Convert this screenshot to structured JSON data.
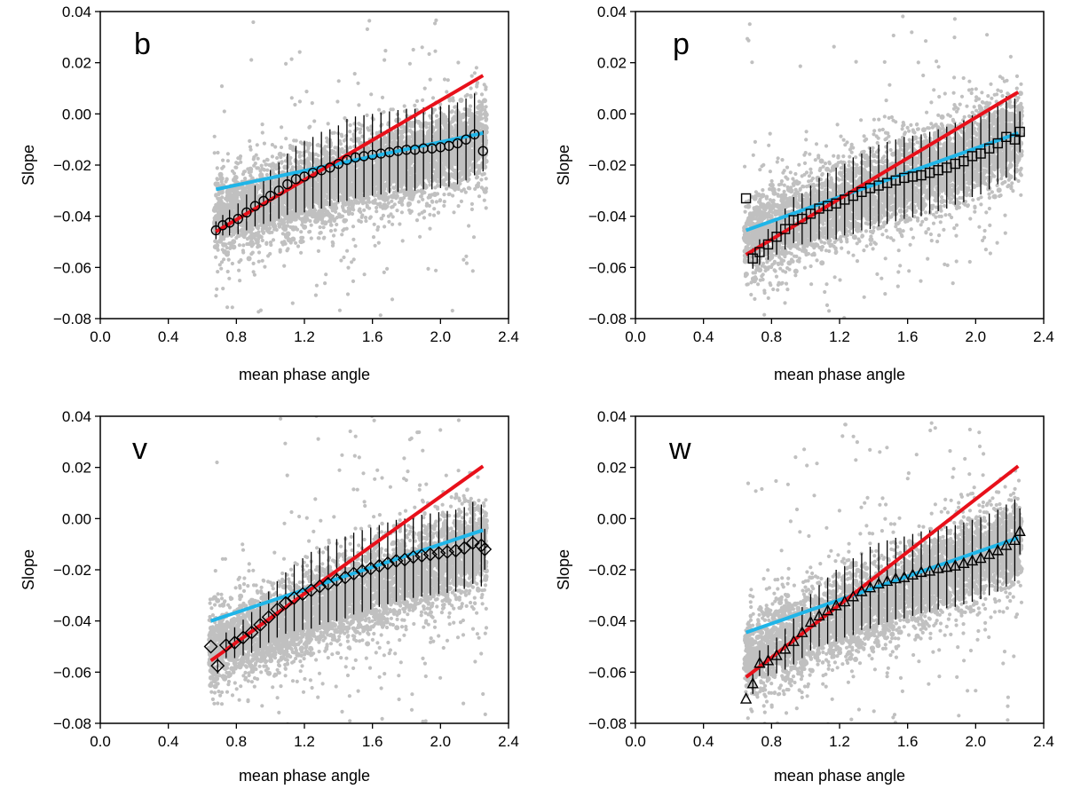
{
  "figure": {
    "shared_x_ticks": [
      "0.0",
      "0.4",
      "0.8",
      "1.2",
      "1.6",
      "2.0",
      "2.4"
    ],
    "shared_y_ticks": [
      "0.04",
      "0.02",
      "0.00",
      "−0.02",
      "−0.04",
      "−0.06",
      "−0.08"
    ],
    "colors": {
      "scatter": "#c0c0c0",
      "red_fit": "#e8101a",
      "blue_fit": "#1fb5e8",
      "marker_edge": "#000000",
      "errorbar": "#000000"
    }
  },
  "chart_data": [
    {
      "type": "scatter",
      "panel": "b",
      "marker": "circle",
      "xlabel": "mean phase angle",
      "ylabel": "Slope",
      "xlim": [
        0.0,
        2.4
      ],
      "ylim": [
        -0.08,
        0.04
      ],
      "x_ticks": [
        0.0,
        0.4,
        0.8,
        1.2,
        1.6,
        2.0,
        2.4
      ],
      "y_ticks": [
        0.04,
        0.02,
        0.0,
        -0.02,
        -0.04,
        -0.06,
        -0.08
      ],
      "scatter_cloud": {
        "x_range": [
          0.67,
          2.27
        ],
        "center_start": -0.04,
        "center_end": -0.01,
        "spread": 0.017,
        "outlier_frac": 0.06
      },
      "red_fit": {
        "x": [
          0.68,
          2.25
        ],
        "y": [
          -0.046,
          0.015
        ]
      },
      "blue_fit": {
        "x": [
          0.68,
          2.25
        ],
        "y": [
          -0.0295,
          -0.0075
        ]
      },
      "binned": {
        "x": [
          0.68,
          0.72,
          0.76,
          0.81,
          0.86,
          0.91,
          0.96,
          1.0,
          1.05,
          1.1,
          1.15,
          1.2,
          1.25,
          1.3,
          1.35,
          1.4,
          1.45,
          1.5,
          1.55,
          1.6,
          1.65,
          1.7,
          1.75,
          1.8,
          1.85,
          1.9,
          1.95,
          2.0,
          2.05,
          2.1,
          2.15,
          2.2,
          2.25
        ],
        "y": [
          -0.0455,
          -0.0435,
          -0.0425,
          -0.041,
          -0.0385,
          -0.036,
          -0.034,
          -0.032,
          -0.03,
          -0.0275,
          -0.0255,
          -0.0245,
          -0.023,
          -0.022,
          -0.021,
          -0.0195,
          -0.018,
          -0.017,
          -0.0165,
          -0.016,
          -0.0155,
          -0.015,
          -0.0145,
          -0.014,
          -0.014,
          -0.0135,
          -0.0135,
          -0.013,
          -0.0125,
          -0.0115,
          -0.01,
          -0.008,
          -0.0145
        ],
        "err": [
          0.0035,
          0.004,
          0.005,
          0.006,
          0.007,
          0.008,
          0.009,
          0.01,
          0.011,
          0.012,
          0.013,
          0.014,
          0.014,
          0.015,
          0.015,
          0.015,
          0.016,
          0.016,
          0.016,
          0.016,
          0.016,
          0.016,
          0.016,
          0.016,
          0.016,
          0.016,
          0.016,
          0.016,
          0.016,
          0.016,
          0.016,
          0.016,
          0.008
        ]
      }
    },
    {
      "type": "scatter",
      "panel": "p",
      "marker": "square",
      "xlabel": "mean phase angle",
      "ylabel": "Slope",
      "xlim": [
        0.0,
        2.4
      ],
      "ylim": [
        -0.08,
        0.04
      ],
      "x_ticks": [
        0.0,
        0.4,
        0.8,
        1.2,
        1.6,
        2.0,
        2.4
      ],
      "y_ticks": [
        0.04,
        0.02,
        0.0,
        -0.02,
        -0.04,
        -0.06,
        -0.08
      ],
      "scatter_cloud": {
        "x_range": [
          0.64,
          2.27
        ],
        "center_start": -0.05,
        "center_end": -0.008,
        "spread": 0.018,
        "outlier_frac": 0.05
      },
      "red_fit": {
        "x": [
          0.65,
          2.25
        ],
        "y": [
          -0.055,
          0.0085
        ]
      },
      "blue_fit": {
        "x": [
          0.65,
          2.25
        ],
        "y": [
          -0.0455,
          -0.0075
        ]
      },
      "binned": {
        "x": [
          0.65,
          0.69,
          0.73,
          0.78,
          0.83,
          0.88,
          0.93,
          0.98,
          1.03,
          1.08,
          1.13,
          1.18,
          1.23,
          1.28,
          1.33,
          1.38,
          1.43,
          1.48,
          1.53,
          1.58,
          1.63,
          1.68,
          1.73,
          1.78,
          1.83,
          1.88,
          1.93,
          1.98,
          2.03,
          2.08,
          2.13,
          2.18,
          2.23,
          2.26
        ],
        "y": [
          -0.033,
          -0.0565,
          -0.054,
          -0.051,
          -0.048,
          -0.045,
          -0.0415,
          -0.041,
          -0.039,
          -0.037,
          -0.036,
          -0.035,
          -0.0335,
          -0.032,
          -0.0305,
          -0.029,
          -0.028,
          -0.027,
          -0.026,
          -0.025,
          -0.0245,
          -0.024,
          -0.023,
          -0.022,
          -0.021,
          -0.0195,
          -0.0185,
          -0.0165,
          -0.0155,
          -0.0135,
          -0.0115,
          -0.009,
          -0.01,
          -0.007
        ],
        "err": [
          0.0,
          0.004,
          0.005,
          0.006,
          0.007,
          0.008,
          0.009,
          0.01,
          0.011,
          0.012,
          0.013,
          0.014,
          0.014,
          0.015,
          0.015,
          0.016,
          0.016,
          0.016,
          0.016,
          0.016,
          0.016,
          0.016,
          0.016,
          0.016,
          0.016,
          0.016,
          0.016,
          0.016,
          0.016,
          0.016,
          0.016,
          0.016,
          0.016,
          0.008
        ]
      }
    },
    {
      "type": "scatter",
      "panel": "v",
      "marker": "diamond",
      "xlabel": "mean phase angle",
      "ylabel": "Slope",
      "xlim": [
        0.0,
        2.4
      ],
      "ylim": [
        -0.08,
        0.04
      ],
      "x_ticks": [
        0.0,
        0.4,
        0.8,
        1.2,
        1.6,
        2.0,
        2.4
      ],
      "y_ticks": [
        0.04,
        0.02,
        0.0,
        -0.02,
        -0.04,
        -0.06,
        -0.08
      ],
      "scatter_cloud": {
        "x_range": [
          0.64,
          2.27
        ],
        "center_start": -0.052,
        "center_end": -0.01,
        "spread": 0.018,
        "outlier_frac": 0.08
      },
      "red_fit": {
        "x": [
          0.65,
          2.25
        ],
        "y": [
          -0.0555,
          0.0205
        ]
      },
      "blue_fit": {
        "x": [
          0.65,
          2.25
        ],
        "y": [
          -0.04,
          -0.0045
        ]
      },
      "binned": {
        "x": [
          0.65,
          0.69,
          0.74,
          0.79,
          0.84,
          0.89,
          0.94,
          0.99,
          1.04,
          1.09,
          1.14,
          1.19,
          1.24,
          1.29,
          1.34,
          1.39,
          1.44,
          1.49,
          1.54,
          1.59,
          1.64,
          1.69,
          1.74,
          1.79,
          1.84,
          1.89,
          1.94,
          1.99,
          2.04,
          2.09,
          2.14,
          2.19,
          2.24,
          2.26
        ],
        "y": [
          -0.05,
          -0.0575,
          -0.0495,
          -0.0485,
          -0.0465,
          -0.0445,
          -0.0415,
          -0.0385,
          -0.0355,
          -0.033,
          -0.031,
          -0.0295,
          -0.028,
          -0.0265,
          -0.0255,
          -0.024,
          -0.023,
          -0.0215,
          -0.0205,
          -0.0195,
          -0.0185,
          -0.0175,
          -0.0165,
          -0.016,
          -0.015,
          -0.0145,
          -0.014,
          -0.0135,
          -0.013,
          -0.0125,
          -0.0115,
          -0.0095,
          -0.0105,
          -0.012
        ],
        "err": [
          0.0,
          0.003,
          0.005,
          0.006,
          0.007,
          0.008,
          0.009,
          0.01,
          0.011,
          0.012,
          0.013,
          0.014,
          0.015,
          0.015,
          0.015,
          0.016,
          0.016,
          0.016,
          0.016,
          0.016,
          0.016,
          0.016,
          0.016,
          0.016,
          0.016,
          0.016,
          0.016,
          0.016,
          0.016,
          0.016,
          0.016,
          0.016,
          0.016,
          0.008
        ]
      }
    },
    {
      "type": "scatter",
      "panel": "w",
      "marker": "triangle",
      "xlabel": "mean phase angle",
      "ylabel": "Slope",
      "xlim": [
        0.0,
        2.4
      ],
      "ylim": [
        -0.08,
        0.04
      ],
      "x_ticks": [
        0.0,
        0.4,
        0.8,
        1.2,
        1.6,
        2.0,
        2.4
      ],
      "y_ticks": [
        0.04,
        0.02,
        0.0,
        -0.02,
        -0.04,
        -0.06,
        -0.08
      ],
      "scatter_cloud": {
        "x_range": [
          0.64,
          2.27
        ],
        "center_start": -0.055,
        "center_end": -0.008,
        "spread": 0.018,
        "outlier_frac": 0.09
      },
      "red_fit": {
        "x": [
          0.65,
          2.25
        ],
        "y": [
          -0.062,
          0.0205
        ]
      },
      "blue_fit": {
        "x": [
          0.65,
          2.25
        ],
        "y": [
          -0.0445,
          -0.0075
        ]
      },
      "binned": {
        "x": [
          0.65,
          0.69,
          0.73,
          0.78,
          0.83,
          0.88,
          0.93,
          0.98,
          1.03,
          1.08,
          1.13,
          1.18,
          1.23,
          1.28,
          1.33,
          1.38,
          1.43,
          1.48,
          1.53,
          1.58,
          1.63,
          1.68,
          1.73,
          1.78,
          1.83,
          1.88,
          1.93,
          1.98,
          2.03,
          2.08,
          2.13,
          2.18,
          2.23,
          2.26
        ],
        "y": [
          -0.0705,
          -0.0645,
          -0.0565,
          -0.0555,
          -0.0535,
          -0.051,
          -0.048,
          -0.0445,
          -0.0405,
          -0.038,
          -0.036,
          -0.034,
          -0.0325,
          -0.0305,
          -0.0285,
          -0.027,
          -0.0255,
          -0.0245,
          -0.0235,
          -0.023,
          -0.022,
          -0.021,
          -0.0205,
          -0.0195,
          -0.019,
          -0.0185,
          -0.0175,
          -0.0165,
          -0.0155,
          -0.014,
          -0.0125,
          -0.0105,
          -0.0085,
          -0.005
        ],
        "err": [
          0.0,
          0.004,
          0.005,
          0.006,
          0.007,
          0.008,
          0.009,
          0.01,
          0.011,
          0.012,
          0.013,
          0.014,
          0.014,
          0.015,
          0.015,
          0.016,
          0.016,
          0.016,
          0.016,
          0.016,
          0.016,
          0.016,
          0.016,
          0.016,
          0.016,
          0.016,
          0.016,
          0.016,
          0.016,
          0.016,
          0.016,
          0.016,
          0.016,
          0.009
        ]
      }
    }
  ]
}
